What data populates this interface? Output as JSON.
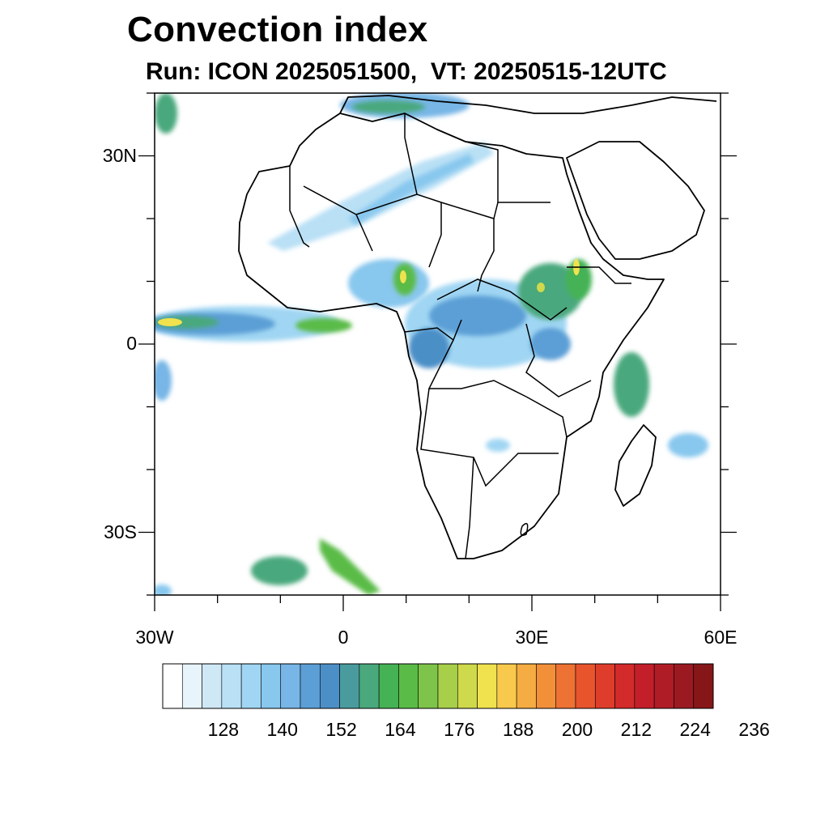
{
  "title": "Convection index",
  "subtitle": "Run: ICON 2025051500,  VT: 20250515-12UTC",
  "map": {
    "lon_range": [
      -30,
      60
    ],
    "lat_range": [
      -40,
      40
    ],
    "lat_ticks": [
      {
        "value": 30,
        "label": "30N"
      },
      {
        "value": 0,
        "label": "0"
      },
      {
        "value": -30,
        "label": "30S"
      }
    ],
    "lon_ticks": [
      {
        "value": -30,
        "label": "30W"
      },
      {
        "value": 0,
        "label": "0"
      },
      {
        "value": 30,
        "label": "30E"
      },
      {
        "value": 60,
        "label": "60E"
      }
    ],
    "field_regions": [
      {
        "name": "itcz-atlantic",
        "lon": -22,
        "lat": 3,
        "level": 170
      },
      {
        "name": "west-africa-band",
        "lon": 8,
        "lat": 12,
        "level": 165
      },
      {
        "name": "central-africa",
        "lon": 22,
        "lat": 3,
        "level": 160
      },
      {
        "name": "ethiopian-highlands",
        "lon": 35,
        "lat": 9,
        "level": 182
      },
      {
        "name": "lake-victoria",
        "lon": 31,
        "lat": 0,
        "level": 158
      },
      {
        "name": "madagascar-channel",
        "lon": 45,
        "lat": -8,
        "level": 165
      },
      {
        "name": "sahara-band",
        "lon": 10,
        "lat": 25,
        "level": 130
      },
      {
        "name": "mediterranean",
        "lon": 20,
        "lat": 38,
        "level": 158
      },
      {
        "name": "south-atlantic",
        "lon": -5,
        "lat": -36,
        "level": 168
      }
    ]
  },
  "colorbar": {
    "colors": [
      "#ffffff",
      "#e8f4fb",
      "#cfe8f6",
      "#b9e0f5",
      "#a0d6f3",
      "#88c7ee",
      "#77b6e6",
      "#5b9fd6",
      "#4c8fc7",
      "#4a9b9e",
      "#4aa87d",
      "#45b255",
      "#5abb47",
      "#7ec44a",
      "#a8cf4a",
      "#cfd94c",
      "#f0e24f",
      "#f8c94d",
      "#f5ac42",
      "#f2903a",
      "#ee7233",
      "#e8552d",
      "#df3d2b",
      "#d32a2b",
      "#c21f2b",
      "#b01c26",
      "#9b1a22",
      "#861618"
    ],
    "labels": [
      "128",
      "140",
      "152",
      "164",
      "176",
      "188",
      "200",
      "212",
      "224",
      "236"
    ]
  }
}
